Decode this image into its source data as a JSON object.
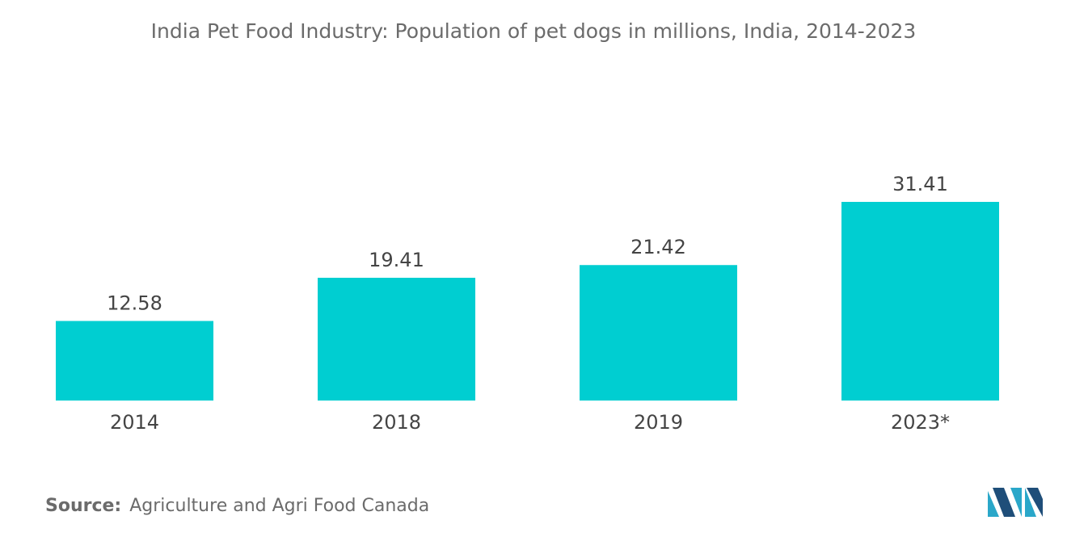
{
  "chart_data": {
    "type": "bar",
    "title": "India Pet Food Industry: Population of pet dogs in millions, India, 2014-2023",
    "categories": [
      "2014",
      "2018",
      "2019",
      "2023*"
    ],
    "values": [
      12.58,
      19.41,
      21.42,
      31.41
    ],
    "value_labels": [
      "12.58",
      "19.41",
      "21.42",
      "31.41"
    ],
    "xlabel": "",
    "ylabel": "",
    "ylim": [
      0,
      31.41
    ],
    "grid": false,
    "bar_color": "#00CED1"
  },
  "source": {
    "label": "Source:",
    "text": "Agriculture and Agri Food Canada"
  },
  "logo": {
    "icon": "mordor-intelligence-logo-icon",
    "colors": [
      "#1f4e79",
      "#2aa7c9"
    ]
  }
}
